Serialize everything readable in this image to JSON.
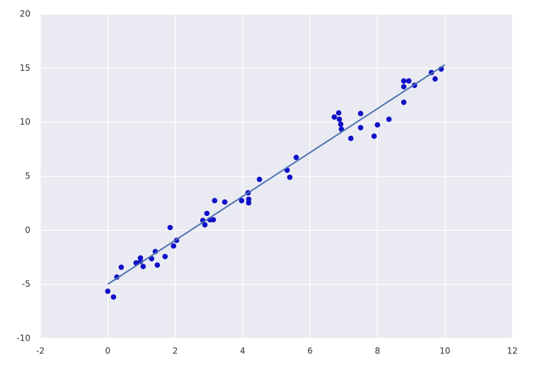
{
  "chart_data": {
    "type": "scatter",
    "xlim": [
      -2,
      12
    ],
    "xticks": [
      -2,
      0,
      2,
      4,
      6,
      8,
      10,
      12
    ],
    "ylim": [
      -10,
      20
    ],
    "yticks": [
      -10,
      -5,
      0,
      5,
      10,
      15,
      20
    ],
    "grid": true,
    "background": "#eaeaf2",
    "series": [
      {
        "type": "scatter",
        "color": "#1010c8",
        "x": [
          0,
          0.17,
          0.27,
          0.4,
          0.84,
          0.97,
          0.97,
          1.05,
          1.3,
          1.41,
          1.47,
          1.7,
          1.85,
          1.95,
          2.04,
          2.82,
          2.88,
          2.94,
          3.03,
          3.13,
          3.17,
          3.47,
          3.97,
          4.16,
          4.18,
          4.18,
          4.5,
          5.32,
          5.4,
          5.59,
          6.72,
          6.85,
          6.87,
          6.91,
          6.93,
          7.21,
          7.5,
          7.5,
          7.9,
          8.0,
          8.34,
          8.78,
          8.78,
          8.78,
          8.93,
          9.1,
          9.6,
          9.71,
          9.89
        ],
        "values": [
          -5.63,
          -6.16,
          -4.32,
          -3.41,
          -3.01,
          -2.55,
          -2.88,
          -3.34,
          -2.62,
          -1.96,
          -3.21,
          -2.42,
          0.26,
          -1.44,
          -0.92,
          0.92,
          0.52,
          1.57,
          0.98,
          0.98,
          2.75,
          2.62,
          2.75,
          3.47,
          2.88,
          2.55,
          4.72,
          5.57,
          4.91,
          6.75,
          10.48,
          10.87,
          10.28,
          9.82,
          9.36,
          8.51,
          10.81,
          9.5,
          8.71,
          9.76,
          10.28,
          13.82,
          13.29,
          11.85,
          13.82,
          13.42,
          14.6,
          14.01,
          14.93
        ]
      },
      {
        "type": "line",
        "color": "#4c72b0",
        "x": [
          0,
          10
        ],
        "values": [
          -4.98,
          15.32
        ]
      }
    ]
  }
}
